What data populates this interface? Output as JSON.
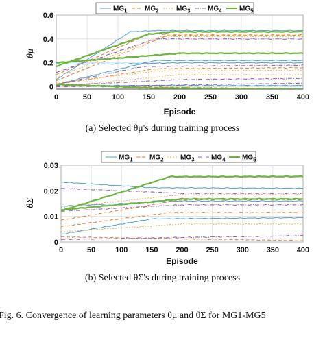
{
  "colors": [
    "#4aa0d6",
    "#e8762b",
    "#e8b24a",
    "#8a5fa8",
    "#6db33f"
  ],
  "chart_data": [
    {
      "type": "line",
      "ylabel": "θμ",
      "xlabel": "Episode",
      "caption": "(a) Selected θμ's during training process",
      "xlim": [
        0,
        400
      ],
      "ylim": [
        -0.02,
        0.6
      ],
      "xticks": [
        "0",
        "50",
        "100",
        "150",
        "200",
        "250",
        "300",
        "350",
        "400"
      ],
      "yticks": [
        "0",
        "0.2",
        "0.4",
        "0.6"
      ],
      "grid": true,
      "legend": [
        "MG1",
        "MG2",
        "MG3",
        "MG4",
        "MG5"
      ],
      "series": [
        {
          "name": "MG1",
          "lines": [
            [
              [
                0,
                0.19
              ],
              [
                100,
                0.19
              ],
              [
                200,
                0.2
              ],
              [
                400,
                0.2
              ]
            ],
            [
              [
                0,
                0.06
              ],
              [
                120,
                0.46
              ],
              [
                160,
                0.47
              ],
              [
                400,
                0.47
              ]
            ],
            [
              [
                0,
                0.02
              ],
              [
                80,
                0.12
              ],
              [
                160,
                0.22
              ],
              [
                400,
                0.22
              ]
            ],
            [
              [
                0,
                0.01
              ],
              [
                400,
                0.01
              ]
            ]
          ]
        },
        {
          "name": "MG2",
          "lines": [
            [
              [
                0,
                0.1
              ],
              [
                150,
                0.44
              ],
              [
                400,
                0.44
              ]
            ],
            [
              [
                0,
                0.05
              ],
              [
                180,
                0.43
              ],
              [
                400,
                0.43
              ]
            ],
            [
              [
                0,
                0.02
              ],
              [
                160,
                0.15
              ],
              [
                400,
                0.16
              ]
            ],
            [
              [
                0,
                0.01
              ],
              [
                400,
                -0.02
              ]
            ]
          ]
        },
        {
          "name": "MG3",
          "lines": [
            [
              [
                0,
                0.08
              ],
              [
                170,
                0.42
              ],
              [
                400,
                0.42
              ]
            ],
            [
              [
                0,
                0.03
              ],
              [
                160,
                0.13
              ],
              [
                400,
                0.14
              ]
            ],
            [
              [
                0,
                0.0
              ],
              [
                200,
                0.1
              ],
              [
                400,
                0.1
              ]
            ]
          ]
        },
        {
          "name": "MG4",
          "lines": [
            [
              [
                0,
                0.12
              ],
              [
                160,
                0.4
              ],
              [
                400,
                0.4
              ]
            ],
            [
              [
                0,
                0.02
              ],
              [
                140,
                0.17
              ],
              [
                400,
                0.18
              ]
            ],
            [
              [
                0,
                0.01
              ],
              [
                200,
                0.06
              ],
              [
                400,
                0.07
              ]
            ],
            [
              [
                0,
                0.0
              ],
              [
                400,
                0.03
              ]
            ]
          ]
        },
        {
          "name": "MG5",
          "lines": [
            [
              [
                0,
                0.17
              ],
              [
                150,
                0.44
              ],
              [
                190,
                0.46
              ],
              [
                400,
                0.46
              ]
            ],
            [
              [
                0,
                0.2
              ],
              [
                100,
                0.24
              ],
              [
                200,
                0.28
              ],
              [
                400,
                0.28
              ]
            ],
            [
              [
                0,
                0.02
              ],
              [
                150,
                -0.01
              ],
              [
                400,
                -0.02
              ]
            ]
          ]
        }
      ]
    },
    {
      "type": "line",
      "ylabel": "θΣ",
      "xlabel": "Episode",
      "caption": "(b) Selected θΣ's during training process",
      "xlim": [
        0,
        400
      ],
      "ylim": [
        0,
        0.03
      ],
      "xticks": [
        "0",
        "50",
        "100",
        "150",
        "200",
        "250",
        "300",
        "350",
        "400"
      ],
      "yticks": [
        "0",
        "0.01",
        "0.02",
        "0.03"
      ],
      "grid": true,
      "legend": [
        "MG1",
        "MG2",
        "MG3",
        "MG4",
        "MG5"
      ],
      "series": [
        {
          "name": "MG1",
          "lines": [
            [
              [
                0,
                0.0234
              ],
              [
                150,
                0.0212
              ],
              [
                400,
                0.021
              ]
            ],
            [
              [
                0,
                0.003
              ],
              [
                150,
                0.009
              ],
              [
                400,
                0.0095
              ]
            ],
            [
              [
                0,
                0.014
              ],
              [
                200,
                0.016
              ],
              [
                400,
                0.016
              ]
            ]
          ]
        },
        {
          "name": "MG2",
          "lines": [
            [
              [
                0,
                0.0085
              ],
              [
                200,
                0.0165
              ],
              [
                400,
                0.0165
              ]
            ],
            [
              [
                0,
                0.006
              ],
              [
                180,
                0.0115
              ],
              [
                400,
                0.0115
              ]
            ],
            [
              [
                0,
                0.002
              ],
              [
                400,
                0.0005
              ]
            ]
          ]
        },
        {
          "name": "MG3",
          "lines": [
            [
              [
                0,
                0.0135
              ],
              [
                200,
                0.0185
              ],
              [
                400,
                0.0185
              ]
            ],
            [
              [
                0,
                0.004
              ],
              [
                200,
                0.007
              ],
              [
                400,
                0.007
              ]
            ]
          ]
        },
        {
          "name": "MG4",
          "lines": [
            [
              [
                0,
                0.021
              ],
              [
                200,
                0.019
              ],
              [
                400,
                0.019
              ]
            ],
            [
              [
                0,
                0.001
              ],
              [
                400,
                0.0025
              ]
            ],
            [
              [
                0,
                0.012
              ],
              [
                200,
                0.0145
              ],
              [
                400,
                0.0145
              ]
            ]
          ]
        },
        {
          "name": "MG5",
          "lines": [
            [
              [
                0,
                0.0122
              ],
              [
                100,
                0.0195
              ],
              [
                180,
                0.0255
              ],
              [
                400,
                0.0256
              ]
            ],
            [
              [
                0,
                0.0125
              ],
              [
                200,
                0.0168
              ],
              [
                400,
                0.0168
              ]
            ]
          ]
        }
      ]
    }
  ],
  "figure_caption": "Fig. 6.  Convergence of learning parameters θμ and θΣ for MG1-MG5"
}
